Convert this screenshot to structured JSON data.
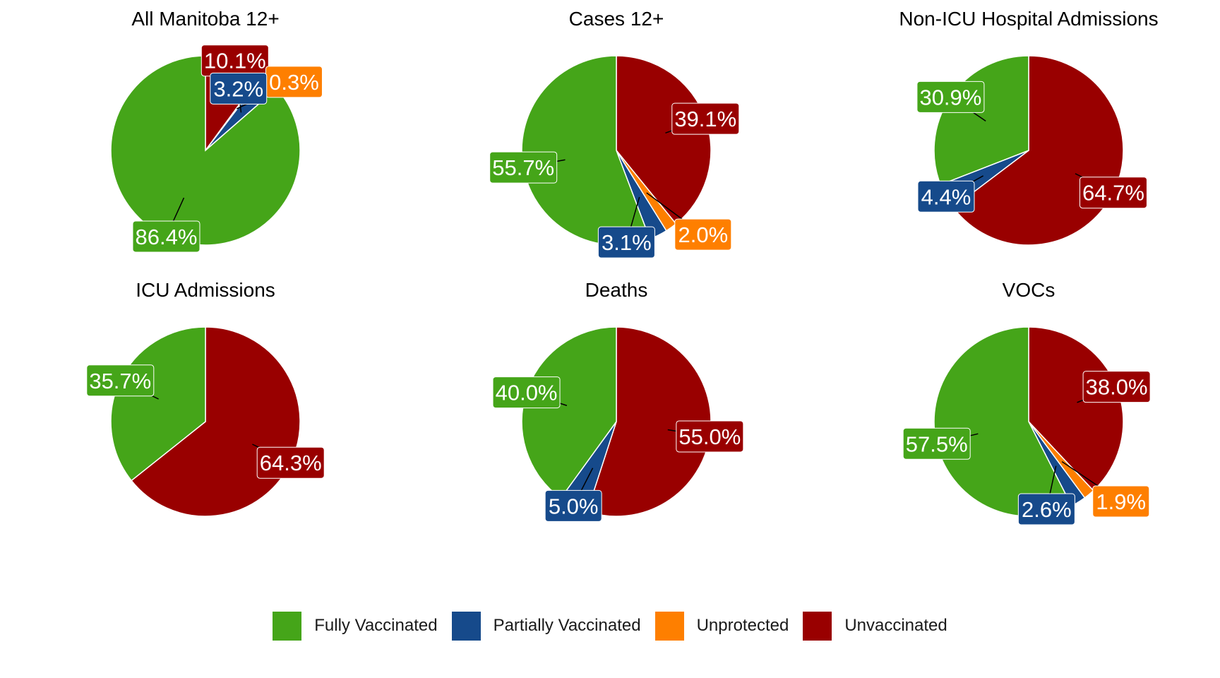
{
  "chart_data": {
    "type": "pie",
    "categories": [
      "Unvaccinated",
      "Unprotected",
      "Partially Vaccinated",
      "Fully Vaccinated"
    ],
    "colors": {
      "Fully Vaccinated": "#45a519",
      "Partially Vaccinated": "#164a8b",
      "Unprotected": "#fe7f00",
      "Unvaccinated": "#990000"
    },
    "legend": {
      "position": "bottom",
      "entries": [
        "Fully Vaccinated",
        "Partially Vaccinated",
        "Unprotected",
        "Unvaccinated"
      ]
    },
    "panels": [
      {
        "title": "All Manitoba 12+",
        "values": {
          "Unvaccinated": 10.1,
          "Unprotected": 0.3,
          "Partially Vaccinated": 3.2,
          "Fully Vaccinated": 86.4
        },
        "labels": {
          "Unvaccinated": "10.1%",
          "Unprotected": "0.3%",
          "Partially Vaccinated": "3.2%",
          "Fully Vaccinated": "86.4%"
        }
      },
      {
        "title": "Cases 12+",
        "values": {
          "Unvaccinated": 39.1,
          "Unprotected": 2.0,
          "Partially Vaccinated": 3.1,
          "Fully Vaccinated": 55.7
        },
        "labels": {
          "Unvaccinated": "39.1%",
          "Unprotected": "2.0%",
          "Partially Vaccinated": "3.1%",
          "Fully Vaccinated": "55.7%"
        }
      },
      {
        "title": "Non-ICU Hospital Admissions",
        "values": {
          "Unvaccinated": 64.7,
          "Partially Vaccinated": 4.4,
          "Fully Vaccinated": 30.9
        },
        "labels": {
          "Unvaccinated": "64.7%",
          "Partially Vaccinated": "4.4%",
          "Fully Vaccinated": "30.9%"
        }
      },
      {
        "title": "ICU Admissions",
        "values": {
          "Unvaccinated": 64.3,
          "Fully Vaccinated": 35.7
        },
        "labels": {
          "Unvaccinated": "64.3%",
          "Fully Vaccinated": "35.7%"
        }
      },
      {
        "title": "Deaths",
        "values": {
          "Unvaccinated": 55.0,
          "Partially Vaccinated": 5.0,
          "Fully Vaccinated": 40.0
        },
        "labels": {
          "Unvaccinated": "55.0%",
          "Partially Vaccinated": "5.0%",
          "Fully Vaccinated": "40.0%"
        }
      },
      {
        "title": "VOCs",
        "values": {
          "Unvaccinated": 38.0,
          "Unprotected": 1.9,
          "Partially Vaccinated": 2.6,
          "Fully Vaccinated": 57.5
        },
        "labels": {
          "Unvaccinated": "38.0%",
          "Unprotected": "1.9%",
          "Partially Vaccinated": "2.6%",
          "Fully Vaccinated": "57.5%"
        }
      }
    ]
  }
}
